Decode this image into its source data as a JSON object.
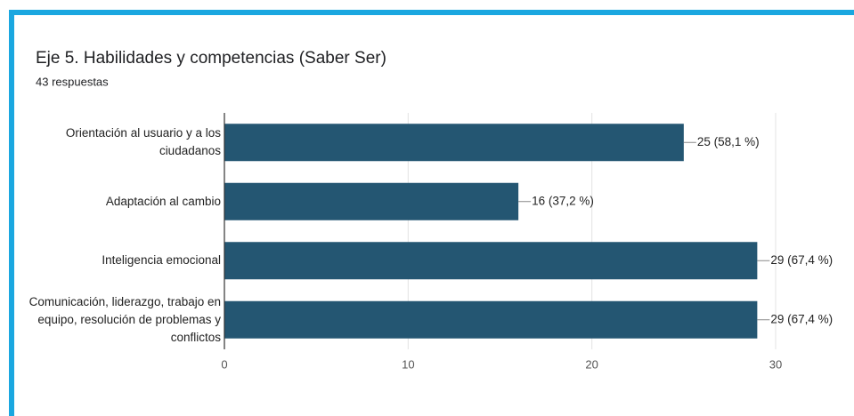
{
  "chart_data": {
    "type": "bar",
    "orientation": "horizontal",
    "title": "Eje 5. Habilidades y competencias (Saber Ser)",
    "subtitle": "43 respuestas",
    "categories": [
      "Orientación al usuario y a los ciudadanos",
      "Adaptación al cambio",
      "Inteligencia emocional",
      "Comunicación, liderazgo, trabajo en equipo, resolución de problemas y conflictos"
    ],
    "values": [
      25,
      16,
      29,
      29
    ],
    "value_labels": [
      "25 (58,1 %)",
      "16 (37,2 %)",
      "29 (67,4 %)",
      "29 (67,4 %)"
    ],
    "color": "#245672",
    "xlim": [
      0,
      30
    ],
    "xticks": [
      0,
      10,
      20,
      30
    ],
    "grid": true
  }
}
